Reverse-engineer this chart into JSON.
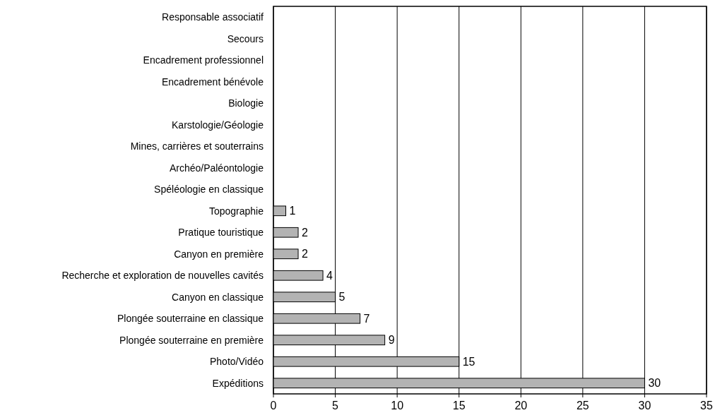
{
  "chart_data": {
    "type": "bar",
    "orientation": "horizontal",
    "categories": [
      "Responsable associatif",
      "Secours",
      "Encadrement professionnel",
      "Encadrement bénévole",
      "Biologie",
      "Karstologie/Géologie",
      "Mines, carrières et souterrains",
      "Archéo/Paléontologie",
      "Spéléologie en classique",
      "Topographie",
      "Pratique touristique",
      "Canyon en première",
      "Recherche et exploration de nouvelles cavités",
      "Canyon en classique",
      "Plongée souterraine en classique",
      "Plongée souterraine en première",
      "Photo/Vidéo",
      "Expéditions"
    ],
    "values": [
      0,
      0,
      0,
      0,
      0,
      0,
      0,
      0,
      0,
      1,
      2,
      2,
      4,
      5,
      7,
      9,
      15,
      30
    ],
    "value_labels": [
      null,
      null,
      null,
      null,
      null,
      null,
      null,
      null,
      null,
      "1",
      "2",
      "2",
      "4",
      "5",
      "7",
      "9",
      "15",
      "30"
    ],
    "color": "#b3b3b3",
    "xlim": [
      0,
      35
    ],
    "xticks": [
      0,
      5,
      10,
      15,
      20,
      25,
      30,
      35
    ],
    "grid": "x"
  }
}
